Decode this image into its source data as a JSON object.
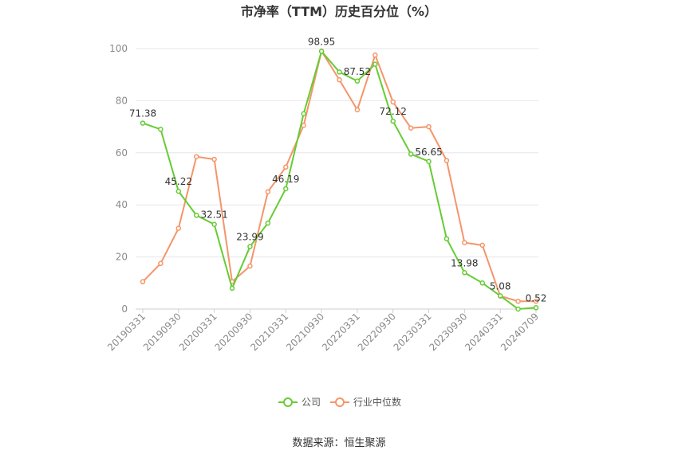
{
  "chart_data": {
    "type": "line",
    "title": "市净率（TTM）历史百分位（%）",
    "source": "数据来源：恒生聚源",
    "ylim": [
      0,
      100
    ],
    "yticks": [
      0,
      20,
      40,
      60,
      80,
      100
    ],
    "grid": true,
    "legend_position": "bottom-center",
    "x": [
      "20190331",
      "20190630",
      "20190930",
      "20191231",
      "20200331",
      "20200630",
      "20200930",
      "20201231",
      "20210331",
      "20210630",
      "20210930",
      "20211231",
      "20220331",
      "20220630",
      "20220930",
      "20221231",
      "20230331",
      "20230630",
      "20230930",
      "20231231",
      "20240331",
      "20240630",
      "20240709"
    ],
    "x_tick_labels": [
      "20190331",
      "20190930",
      "20200331",
      "20200930",
      "20210331",
      "20210930",
      "20220331",
      "20220930",
      "20230331",
      "20230930",
      "20240331",
      "20240709"
    ],
    "series": [
      {
        "name": "公司",
        "color": "#66cc33",
        "values": [
          71.38,
          69,
          45.22,
          36,
          32.51,
          8,
          23.99,
          33,
          46.19,
          75,
          98.95,
          91,
          87.52,
          94,
          72.12,
          59.5,
          56.65,
          27,
          13.98,
          10,
          5.08,
          0,
          0.52
        ],
        "labels": {
          "0": "71.38",
          "2": "45.22",
          "4": "32.51",
          "6": "23.99",
          "8": "46.19",
          "10": "98.95",
          "12": "87.52",
          "14": "72.12",
          "16": "56.65",
          "18": "13.98",
          "20": "5.08",
          "22": "0.52"
        }
      },
      {
        "name": "行业中位数",
        "color": "#f5956a",
        "values": [
          10.5,
          17.5,
          31,
          58.5,
          57.5,
          10.5,
          16.5,
          45,
          54.5,
          70.5,
          99,
          88,
          76.5,
          97.5,
          79.5,
          69.5,
          70,
          57,
          25.5,
          24.5,
          5,
          3,
          3
        ]
      }
    ]
  }
}
